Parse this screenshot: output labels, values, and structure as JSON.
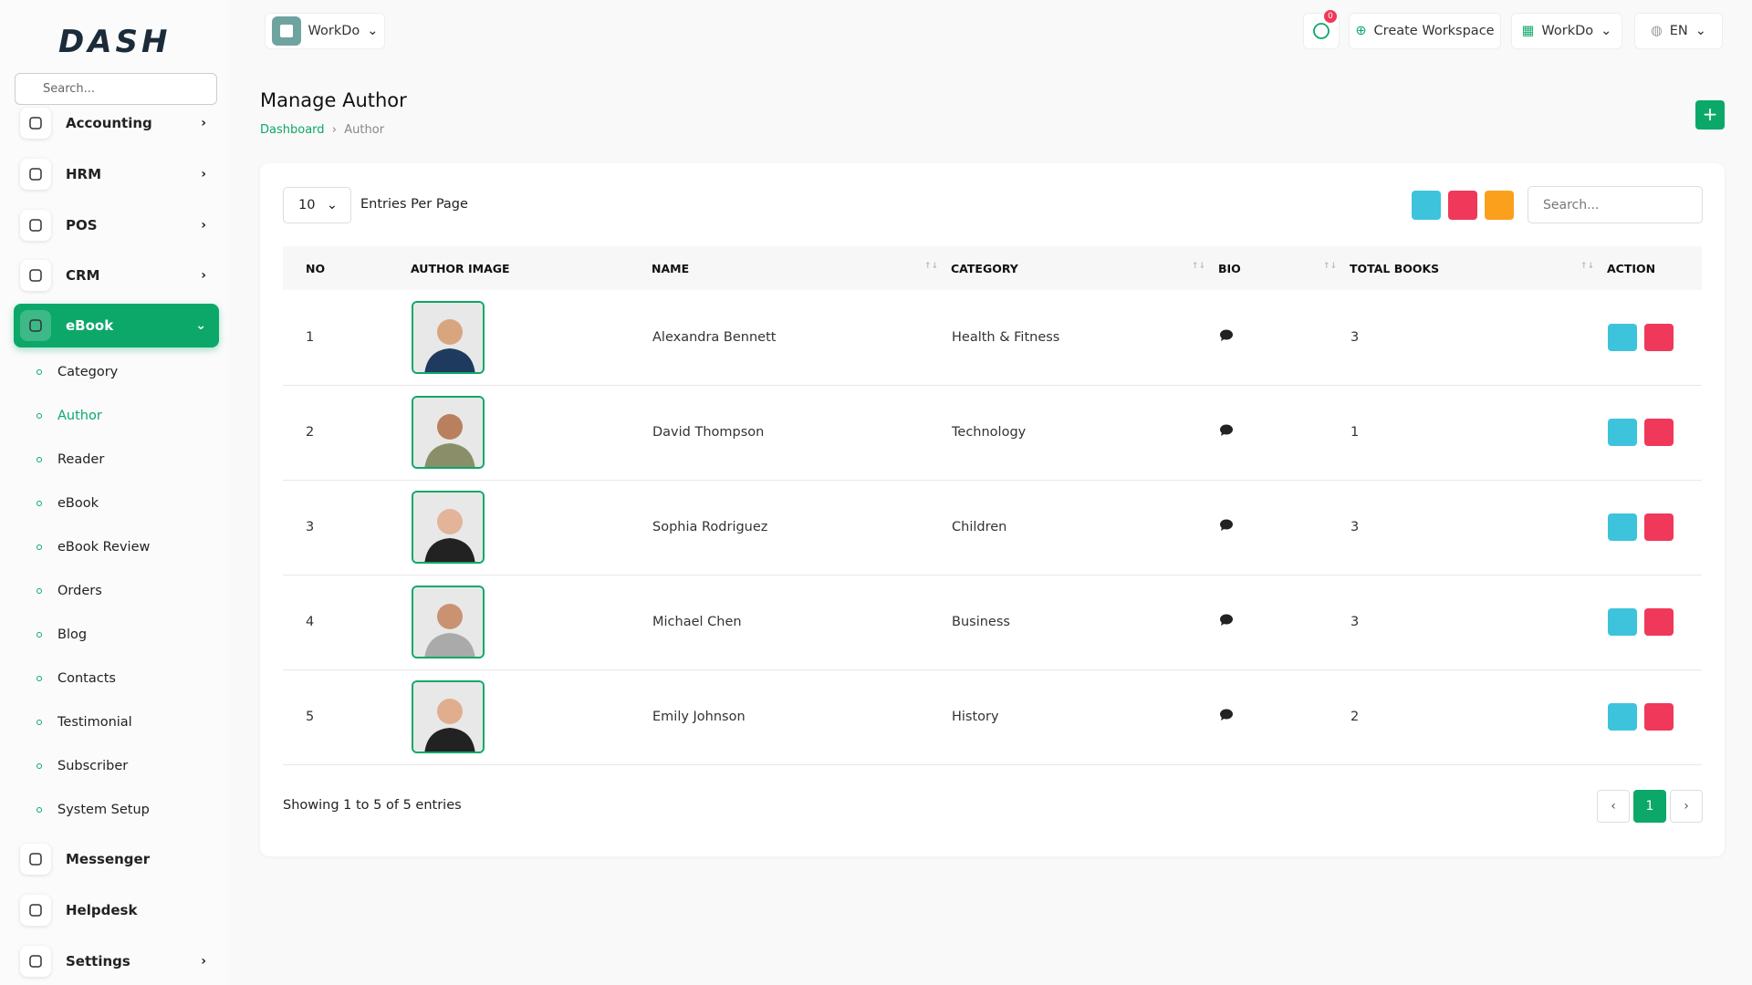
{
  "logo": "DASH",
  "header": {
    "workspace": "WorkDo",
    "notifications": "0",
    "create_workspace": "Create Workspace",
    "user": "WorkDo",
    "language": "EN"
  },
  "sidebar": {
    "search_placeholder": "Search...",
    "menu": [
      "Accounting",
      "HRM",
      "POS",
      "CRM",
      "eBook"
    ],
    "submenu": [
      "Category",
      "Author",
      "Reader",
      "eBook",
      "eBook Review",
      "Orders",
      "Blog",
      "Contacts",
      "Testimonial",
      "Subscriber",
      "System Setup"
    ],
    "bottom_menu": [
      "Messenger",
      "Helpdesk",
      "Settings"
    ]
  },
  "page": {
    "title": "Manage Author",
    "breadcrumb": [
      "Dashboard",
      "Author"
    ]
  },
  "table": {
    "entries_value": "10",
    "entries_label": "Entries Per Page",
    "search_placeholder": "Search...",
    "headers": [
      "NO",
      "AUTHOR IMAGE",
      "NAME",
      "CATEGORY",
      "BIO",
      "TOTAL BOOKS",
      "ACTION"
    ],
    "rows": [
      {
        "no": 1,
        "name": "Alexandra Bennett",
        "category": "Health & Fitness",
        "total_books": 3
      },
      {
        "no": 2,
        "name": "David Thompson",
        "category": "Technology",
        "total_books": 1
      },
      {
        "no": 3,
        "name": "Sophia Rodriguez",
        "category": "Children",
        "total_books": 3
      },
      {
        "no": 4,
        "name": "Michael Chen",
        "category": "Business",
        "total_books": 3
      },
      {
        "no": 5,
        "name": "Emily Johnson",
        "category": "History",
        "total_books": 2
      }
    ],
    "footer": "Showing 1 to 5 of 5 entries",
    "page": "1"
  }
}
